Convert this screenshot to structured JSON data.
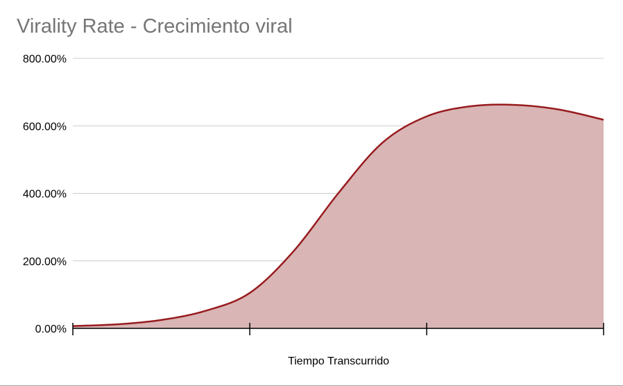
{
  "chart_data": {
    "type": "area",
    "title": "Virality Rate - Crecimiento viral",
    "xlabel": "Tiempo Transcurrido",
    "ylabel": "",
    "y_tick_labels": [
      "0.00%",
      "200.00%",
      "400.00%",
      "600.00%",
      "800.00%"
    ],
    "y_ticks": [
      0,
      200,
      400,
      600,
      800
    ],
    "ylim": [
      0,
      800
    ],
    "x_ticks": [
      0,
      1,
      2,
      3
    ],
    "xlim": [
      0,
      3
    ],
    "grid": true,
    "legend": "none",
    "series": [
      {
        "x": [
          0,
          0.25,
          0.5,
          0.75,
          1,
          1.25,
          1.5,
          1.75,
          2,
          2.25,
          2.5,
          2.75,
          3
        ],
        "values": [
          7,
          12,
          25,
          52,
          105,
          230,
          400,
          550,
          628,
          658,
          662,
          648,
          618
        ],
        "line_color": "#971b1e",
        "fill_color": "#d9b5b5"
      }
    ]
  }
}
